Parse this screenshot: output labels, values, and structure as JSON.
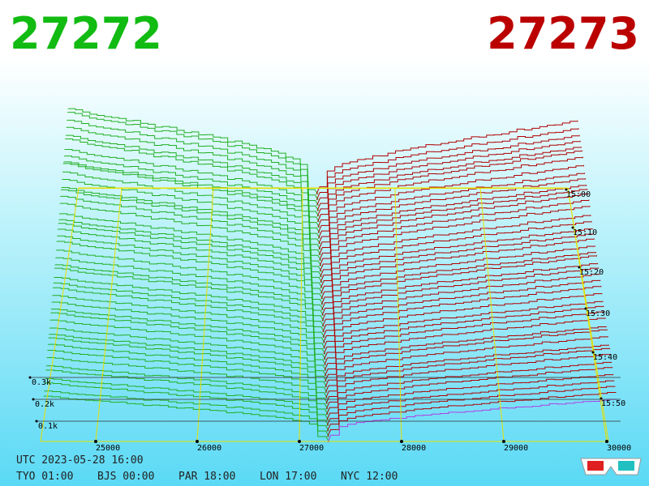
{
  "header": {
    "bid": "27272",
    "ask": "27273"
  },
  "price_axis": {
    "ticks": [
      25000,
      26000,
      27000,
      28000,
      29000,
      30000
    ]
  },
  "time_axis": {
    "ticks": [
      "15:00",
      "15:10",
      "15:20",
      "15:30",
      "15:40",
      "15:50"
    ]
  },
  "depth_axis": {
    "ticks": [
      "0.3k",
      "0.2k",
      "0.1k"
    ]
  },
  "footer": {
    "utc": "UTC 2023-05-28 16:00",
    "clocks": [
      "TYO 01:00",
      "BJS 00:00",
      "PAR 18:00",
      "LON 17:00",
      "NYC 12:00"
    ]
  }
}
